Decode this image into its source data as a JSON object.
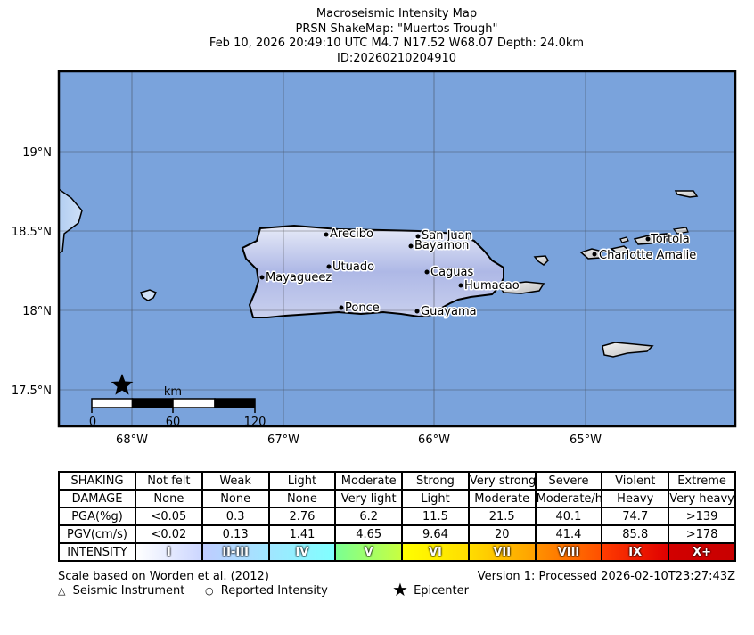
{
  "title": {
    "line1": "Macroseismic Intensity Map",
    "line2": "PRSN ShakeMap: \"Muertos Trough\"",
    "line3": "Feb 10, 2026 20:49:10 UTC M4.7 N17.52 W68.07 Depth: 24.0km",
    "line4": "ID:20260210204910"
  },
  "map": {
    "lat_labels": [
      "19°N",
      "18.5°N",
      "18°N",
      "17.5°N"
    ],
    "lon_labels": [
      "68°W",
      "67°W",
      "66°W",
      "65°W"
    ],
    "ocean_color": "#7aa3dc",
    "scale_bar": {
      "unit": "km",
      "ticks": [
        "0",
        "60",
        "120"
      ]
    },
    "epicenter": {
      "lat": 17.52,
      "lon": -68.07
    },
    "cities": [
      {
        "name": "Arecibo"
      },
      {
        "name": "San Juan"
      },
      {
        "name": "Bayamon"
      },
      {
        "name": "Utuado"
      },
      {
        "name": "Caguas"
      },
      {
        "name": "Mayagueez"
      },
      {
        "name": "Humacao"
      },
      {
        "name": "Ponce"
      },
      {
        "name": "Guayama"
      },
      {
        "name": "Tortola"
      },
      {
        "name": "Charlotte Amalie"
      }
    ]
  },
  "legend": {
    "shaking": [
      "SHAKING",
      "Not felt",
      "Weak",
      "Light",
      "Moderate",
      "Strong",
      "Very strong",
      "Severe",
      "Violent",
      "Extreme"
    ],
    "damage": [
      "DAMAGE",
      "None",
      "None",
      "None",
      "Very light",
      "Light",
      "Moderate",
      "Moderate/heavy",
      "Heavy",
      "Very heavy"
    ],
    "pga": [
      "PGA(%g)",
      "<0.05",
      "0.3",
      "2.76",
      "6.2",
      "11.5",
      "21.5",
      "40.1",
      "74.7",
      ">139"
    ],
    "pgv": [
      "PGV(cm/s)",
      "<0.02",
      "0.13",
      "1.41",
      "4.65",
      "9.64",
      "20",
      "41.4",
      "85.8",
      ">178"
    ],
    "intensity": [
      "INTENSITY",
      "I",
      "II-III",
      "IV",
      "V",
      "VI",
      "VII",
      "VIII",
      "IX",
      "X+"
    ],
    "intensity_colors": [
      [
        "#ffffff",
        "#ccd6ff"
      ],
      [
        "#bfccff",
        "#a0e6ff"
      ],
      [
        "#a0e6ff",
        "#80ffff"
      ],
      [
        "#7aff93",
        "#c8ff40"
      ],
      [
        "#ffff00",
        "#ffdd00"
      ],
      [
        "#ffdd00",
        "#ffa000"
      ],
      [
        "#ff9100",
        "#ff5000"
      ],
      [
        "#ff3c00",
        "#e00000"
      ],
      [
        "#d20000",
        "#c80000"
      ]
    ]
  },
  "footer": {
    "scale_note": "Scale based on Worden et al. (2012)",
    "version": "Version 1: Processed 2026-02-10T23:27:43Z",
    "instrument": "Seismic Instrument",
    "reported": "Reported Intensity",
    "epicenter": "Epicenter"
  }
}
